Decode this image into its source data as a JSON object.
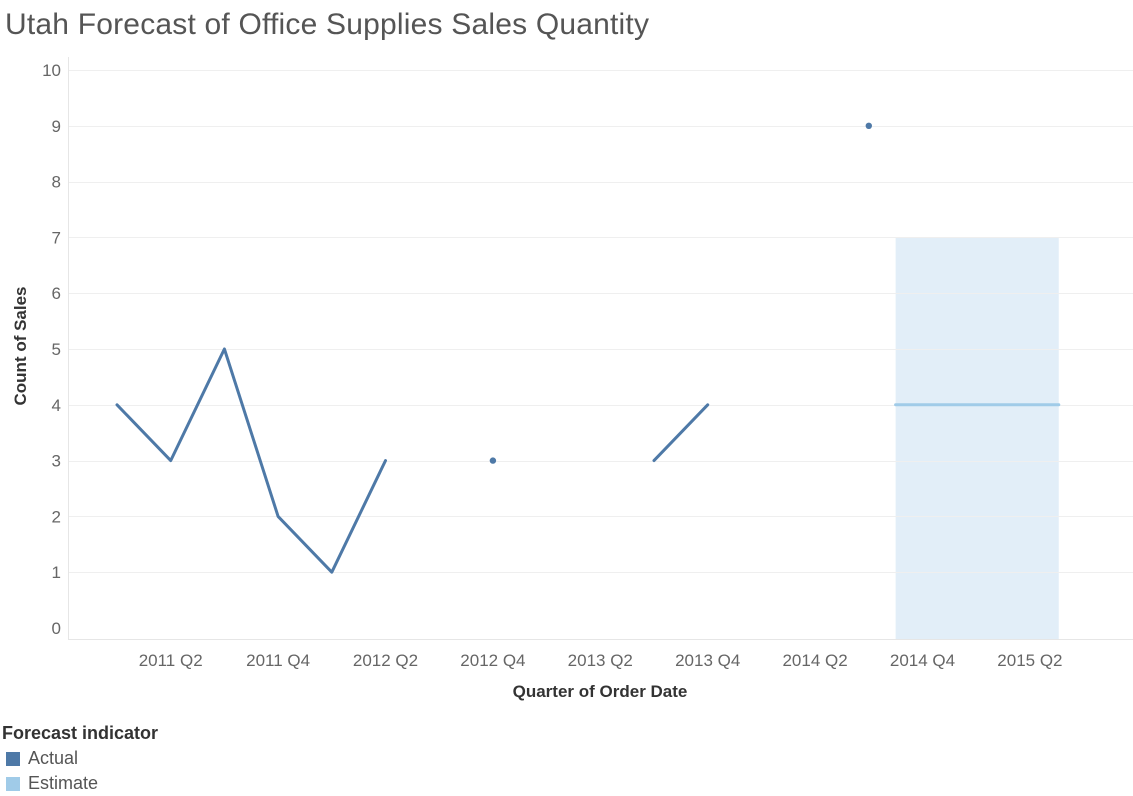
{
  "title": "Utah Forecast of Office Supplies Sales Quantity",
  "chart_data": {
    "type": "line",
    "title": "Utah Forecast of Office Supplies Sales Quantity",
    "xlabel": "Quarter of Order Date",
    "ylabel": "Count of Sales",
    "ylim": [
      0,
      10
    ],
    "y_ticks": [
      0,
      1,
      2,
      3,
      4,
      5,
      6,
      7,
      8,
      9,
      10
    ],
    "x_ticks": [
      "2011 Q2",
      "2011 Q4",
      "2012 Q2",
      "2012 Q4",
      "2013 Q2",
      "2013 Q4",
      "2014 Q2",
      "2014 Q4",
      "2015 Q2"
    ],
    "grid": true,
    "categories": [
      "2011 Q1",
      "2011 Q2",
      "2011 Q3",
      "2011 Q4",
      "2012 Q1",
      "2012 Q2",
      "2012 Q3",
      "2012 Q4",
      "2013 Q1",
      "2013 Q2",
      "2013 Q3",
      "2013 Q4",
      "2014 Q1",
      "2014 Q2",
      "2014 Q3",
      "2014 Q4",
      "2015 Q1",
      "2015 Q2",
      "2015 Q3"
    ],
    "series": [
      {
        "name": "Actual",
        "color": "#4e79a7",
        "values": [
          4,
          3,
          5,
          2,
          1,
          3,
          null,
          3,
          null,
          null,
          3,
          4,
          null,
          null,
          9,
          null,
          null,
          null,
          null
        ]
      },
      {
        "name": "Estimate",
        "color": "#a0cbe8",
        "values": [
          null,
          null,
          null,
          null,
          null,
          null,
          null,
          null,
          null,
          null,
          null,
          null,
          null,
          null,
          null,
          4,
          4,
          4,
          4
        ]
      }
    ],
    "forecast_band": {
      "from": "2014 Q4",
      "to": "2015 Q3",
      "lower": 0,
      "upper": 7,
      "color": "#e2eef8"
    },
    "legend": {
      "title": "Forecast indicator",
      "placement": "bottom-left"
    }
  }
}
